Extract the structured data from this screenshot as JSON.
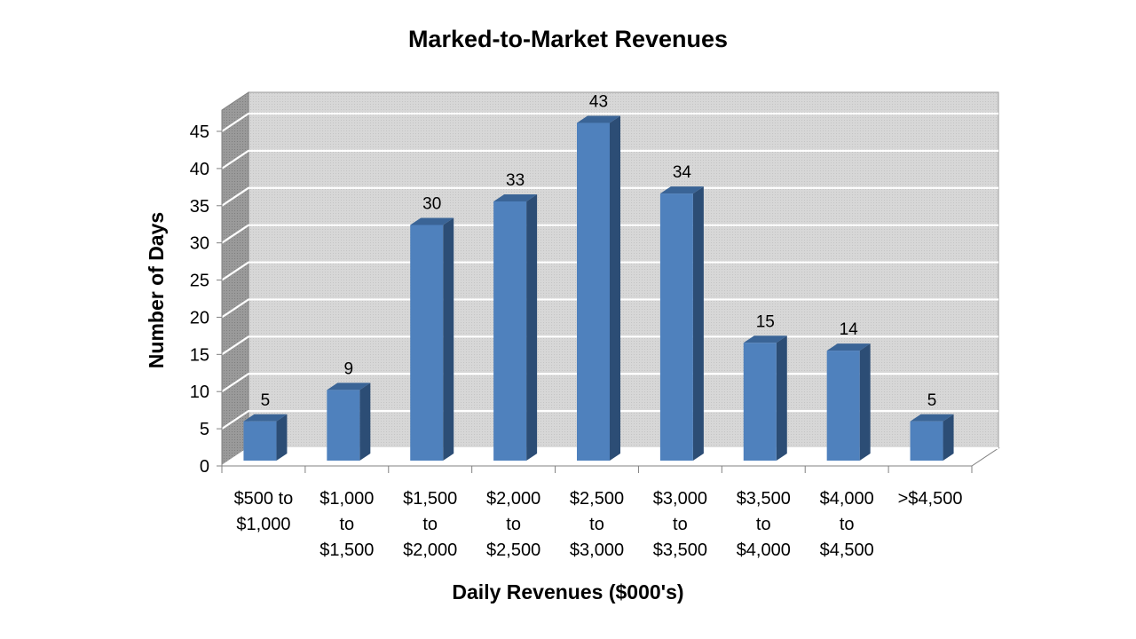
{
  "chart_data": {
    "type": "bar",
    "title": "Marked-to-Market Revenues",
    "xlabel": "Daily Revenues ($000's)",
    "ylabel": "Number of Days",
    "categories": [
      [
        "$500 to",
        "$1,000"
      ],
      [
        "$1,000",
        "to",
        "$1,500"
      ],
      [
        "$1,500",
        "to",
        "$2,000"
      ],
      [
        "$2,000",
        "to",
        "$2,500"
      ],
      [
        "$2,500",
        "to",
        "$3,000"
      ],
      [
        "$3,000",
        "to",
        "$3,500"
      ],
      [
        "$3,500",
        "to",
        "$4,000"
      ],
      [
        "$4,000",
        "to",
        "$4,500"
      ],
      [
        ">$4,500"
      ]
    ],
    "values": [
      5,
      9,
      30,
      33,
      43,
      34,
      15,
      14,
      5
    ],
    "data_labels": [
      "5",
      "9",
      "30",
      "33",
      "43",
      "34",
      "15",
      "14",
      "5"
    ],
    "yticks": [
      "0",
      "5",
      "10",
      "15",
      "20",
      "25",
      "30",
      "35",
      "40",
      "45"
    ],
    "ylim": [
      0,
      45
    ],
    "grid": true,
    "legend": "none",
    "style": "3d-clustered-column",
    "colors": {
      "bar_front": "#4F81BD",
      "bar_side": "#2C4D75",
      "bar_top": "#3A6496",
      "wall": "#D9D9D9",
      "floor": "#FFFFFF",
      "gridline": "#FFFFFF",
      "wall_edge": "#808080"
    }
  }
}
